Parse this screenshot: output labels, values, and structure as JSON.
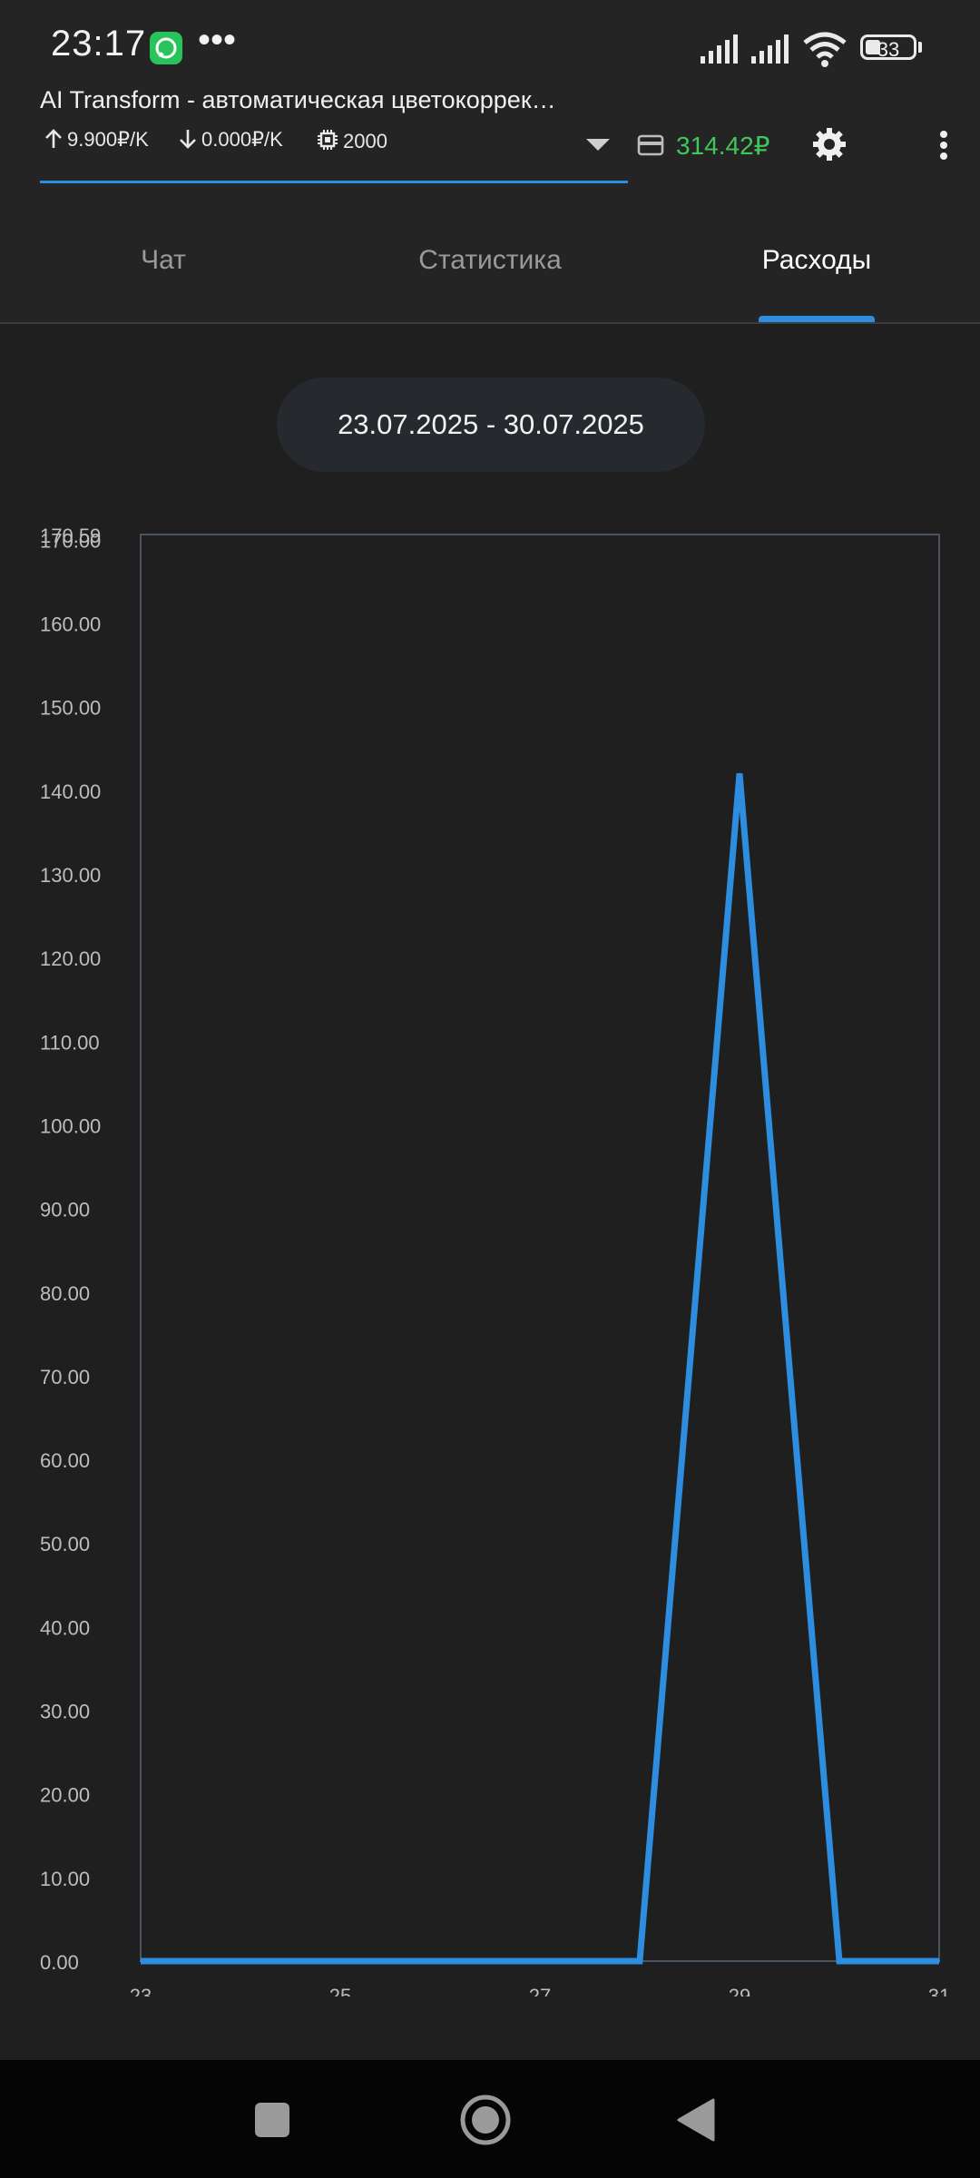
{
  "status_bar": {
    "time": "23:17",
    "notification_app": "whatsapp-icon",
    "more": "•••",
    "battery": "33"
  },
  "header": {
    "title": "AI Transform - автоматическая цветокоррек…",
    "input_price": "9.900₽/K",
    "output_price": "0.000₽/K",
    "context_tokens": "2000",
    "balance": "314.42₽"
  },
  "tabs": [
    {
      "label": "Чат",
      "active": false
    },
    {
      "label": "Статистика",
      "active": false
    },
    {
      "label": "Расходы",
      "active": true
    }
  ],
  "date_range": "23.07.2025 - 30.07.2025",
  "colors": {
    "accent": "#2e8ddf",
    "balance": "#3fc75a",
    "background": "#1f1f1f"
  },
  "chart_data": {
    "type": "line",
    "x": [
      23,
      24,
      25,
      26,
      27,
      28,
      29,
      30,
      31
    ],
    "values": [
      0,
      0,
      0,
      0,
      0,
      0,
      142,
      0,
      0
    ],
    "xticks": [
      "23",
      "25",
      "27",
      "29",
      "31"
    ],
    "yticks": [
      "0.00",
      "10.00",
      "20.00",
      "30.00",
      "40.00",
      "50.00",
      "60.00",
      "70.00",
      "80.00",
      "90.00",
      "100.00",
      "110.00",
      "120.00",
      "130.00",
      "140.00",
      "150.00",
      "160.00",
      "170.00"
    ],
    "ymax_label": "170.59",
    "ylim": [
      0,
      170.59
    ],
    "xlim": [
      23,
      31
    ],
    "series_color": "#2e8ddf"
  }
}
